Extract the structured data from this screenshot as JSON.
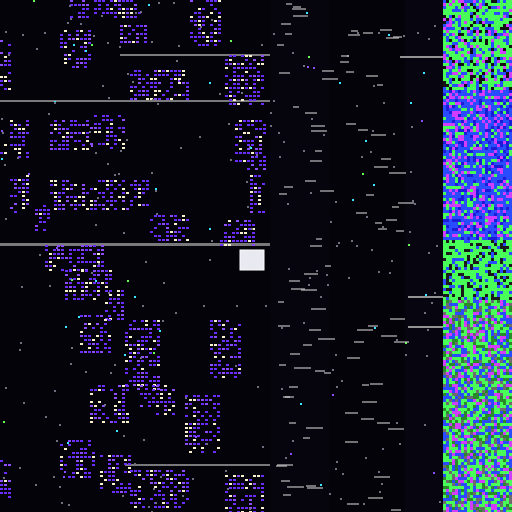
{
  "image": {
    "kind": "die-micrograph",
    "palette": {
      "background": "#05030a",
      "cell_purple": "#6a2cff",
      "cell_violet": "#8d4dff",
      "cell_highlight": "#f7f1d0",
      "cell_white": "#e9e6ff",
      "cell_green": "#62ff4f",
      "cell_cyan": "#39e8ff",
      "right_block_green": "#48ff59",
      "right_block_blue": "#2a4cff",
      "right_block_magenta": "#d23cff",
      "bus_gray": "#b9b9b9",
      "trace_gray": "#cfcfcf"
    }
  }
}
